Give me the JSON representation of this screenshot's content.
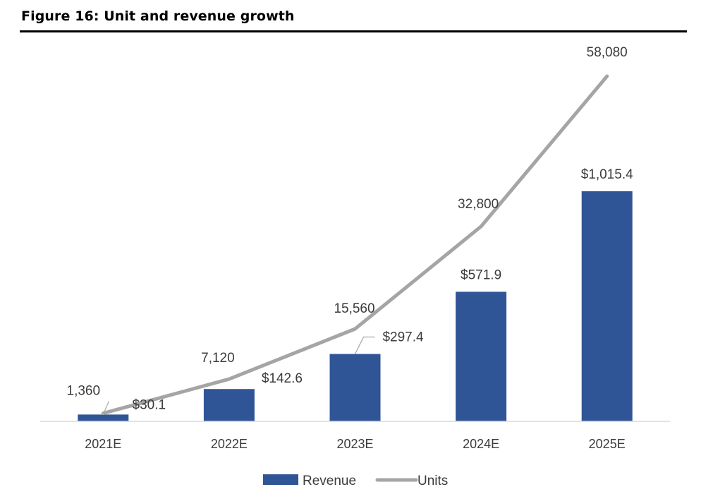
{
  "figure": {
    "title": "Figure 16: Unit and revenue growth"
  },
  "colors": {
    "revenue": "#2f5597",
    "units": "#a5a5a5",
    "axis": "#d9d9d9",
    "text": "#3b3b3b"
  },
  "chart_data": {
    "type": "bar",
    "title": "Figure 16: Unit and revenue growth",
    "xlabel": "",
    "ylabel": "",
    "categories": [
      "2021E",
      "2022E",
      "2023E",
      "2024E",
      "2025E"
    ],
    "series": [
      {
        "name": "Revenue",
        "type": "bar",
        "axis": "primary",
        "values": [
          30.1,
          142.6,
          297.4,
          571.9,
          1015.4
        ],
        "labels": [
          "$30.1",
          "$142.6",
          "$297.4",
          "$571.9",
          "$1,015.4"
        ]
      },
      {
        "name": "Units",
        "type": "line",
        "axis": "secondary",
        "values": [
          1360,
          7120,
          15560,
          32800,
          58080
        ],
        "labels": [
          "1,360",
          "7,120",
          "15,560",
          "32,800",
          "58,080"
        ]
      }
    ],
    "grid": false,
    "legend": "bottom"
  }
}
